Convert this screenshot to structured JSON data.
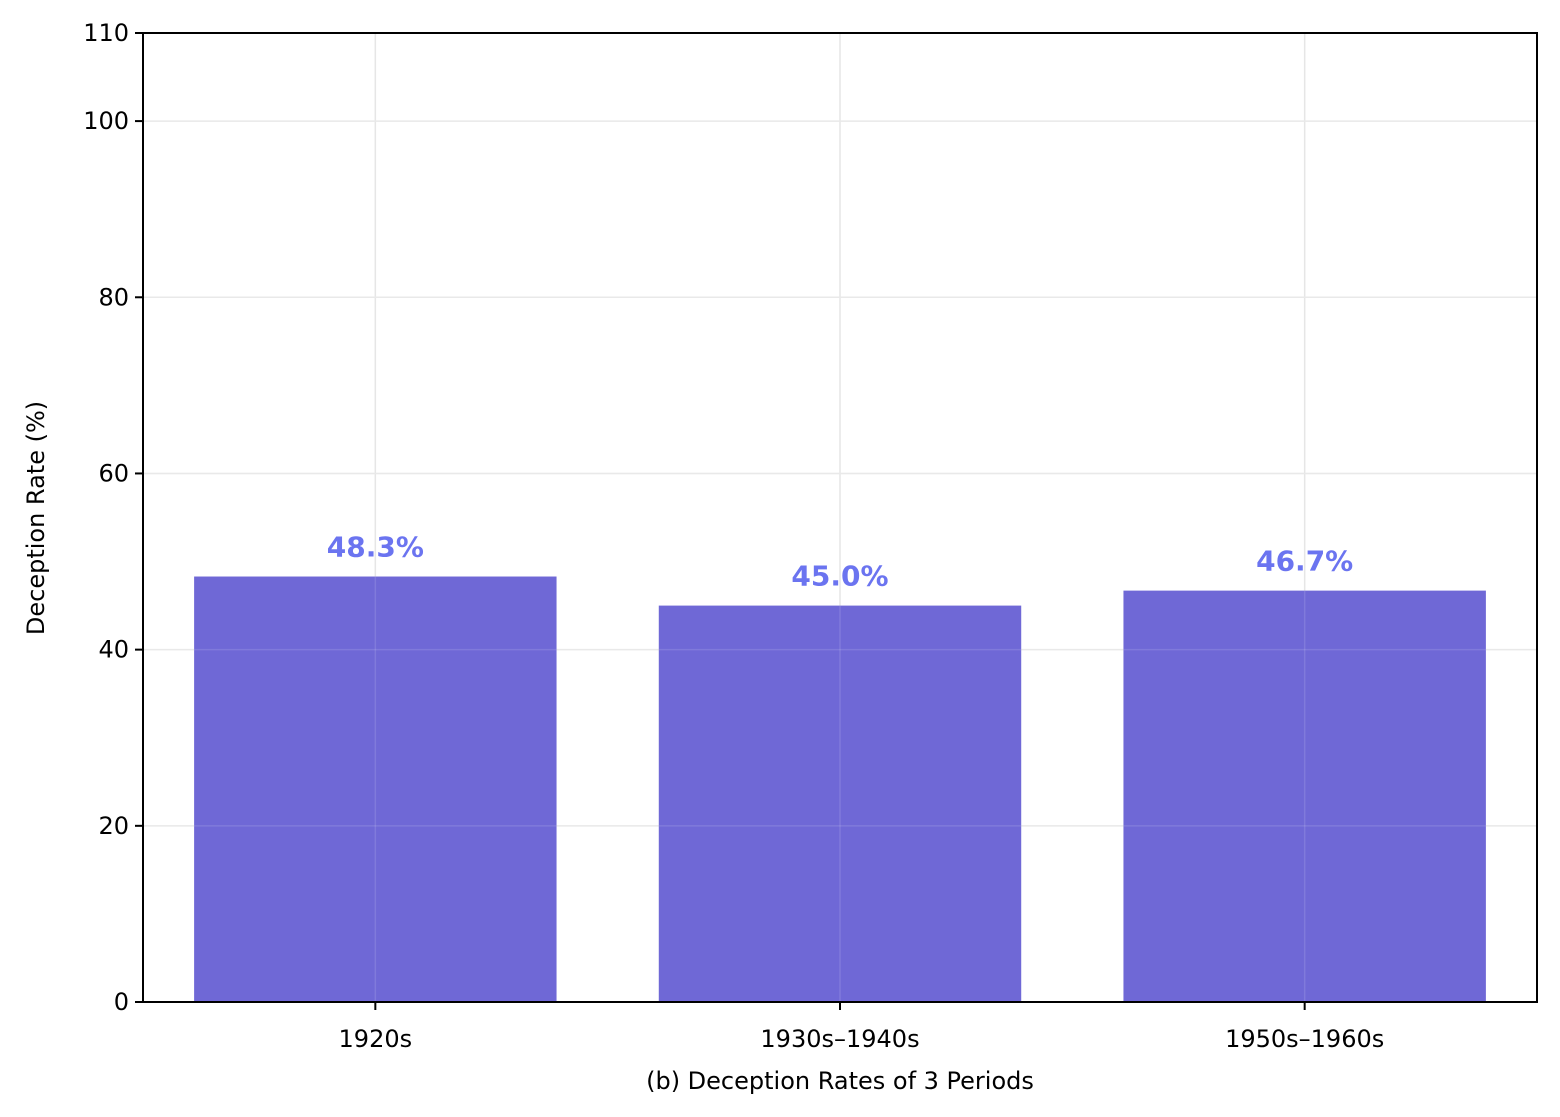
{
  "chart_data": {
    "type": "bar",
    "categories": [
      "1920s",
      "1930s–1940s",
      "1950s–1960s"
    ],
    "values": [
      48.3,
      45.0,
      46.7
    ],
    "value_labels": [
      "48.3%",
      "45.0%",
      "46.7%"
    ],
    "title": "",
    "xlabel": "(b) Deception Rates of 3 Periods",
    "ylabel": "Deception Rate (%)",
    "ylim": [
      0,
      110
    ],
    "yticks": [
      0,
      20,
      40,
      60,
      80,
      100,
      110
    ],
    "grid": true,
    "colors": {
      "bar": "#6f68d6",
      "bar_label": "#6b74f0",
      "grid": "#e6e6e6",
      "axis": "#000000"
    }
  }
}
